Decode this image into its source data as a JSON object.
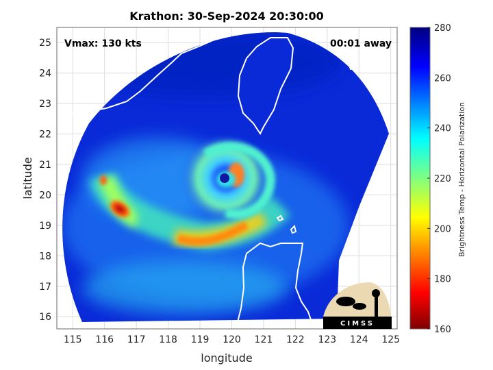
{
  "chart_data": {
    "type": "heatmap",
    "title": "Krathon: 30-Sep-2024 20:30:00",
    "xlabel": "longitude",
    "ylabel": "latitude",
    "xlim": [
      114.5,
      125.2
    ],
    "ylim": [
      15.6,
      25.5
    ],
    "xticks": [
      "115",
      "116",
      "117",
      "118",
      "119",
      "120",
      "121",
      "122",
      "123",
      "124",
      "125"
    ],
    "yticks": [
      "16",
      "17",
      "18",
      "19",
      "20",
      "21",
      "22",
      "23",
      "24",
      "25"
    ],
    "grid": true,
    "colorbar": {
      "label": "Brightness Temp - Horizontal Polarization",
      "range": [
        160,
        280
      ],
      "ticks": [
        "160",
        "180",
        "200",
        "220",
        "240",
        "260",
        "280"
      ],
      "colormap": "jet",
      "placement": "right"
    },
    "storm": {
      "name": "Krathon",
      "eye_center": [
        119.7,
        20.6
      ],
      "vmax_kts": 130
    },
    "annotations": {
      "vmax": "Vmax: 130 kts",
      "time_offset": "00:01 away"
    }
  },
  "logo": {
    "text": "CIMSS"
  },
  "colors": {
    "background_field": "#0a2ad8",
    "coast": "#ffffff"
  }
}
